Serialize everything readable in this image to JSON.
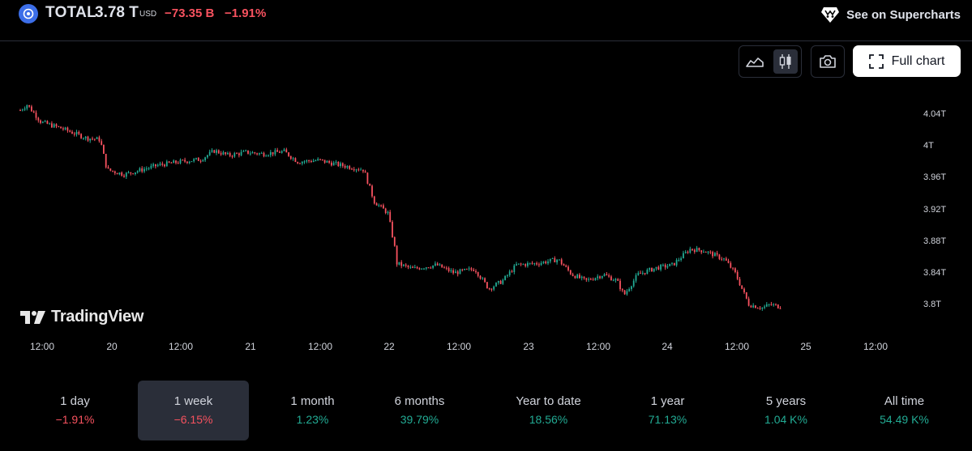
{
  "header": {
    "symbol": "TOTAL",
    "price": "3.78 T",
    "currency": "USD",
    "change": "−73.35 B",
    "change_percent": "−1.91%",
    "supercharts_label": "See on Supercharts"
  },
  "toolbar": {
    "full_chart_label": "Full chart",
    "active_style": "candles"
  },
  "branding": {
    "logo_text": "TradingView"
  },
  "chart_data": {
    "type": "candlestick",
    "title": "",
    "y_ticks": [
      "4.04T",
      "4T",
      "3.96T",
      "3.92T",
      "3.88T",
      "3.84T",
      "3.8T"
    ],
    "x_ticks": [
      "12:00",
      "20",
      "12:00",
      "21",
      "12:00",
      "22",
      "12:00",
      "23",
      "12:00",
      "24",
      "12:00",
      "25",
      "12:00"
    ],
    "ylim": [
      3.78,
      4.06
    ],
    "close_path": [
      {
        "t": 0.0,
        "v": 4.045
      },
      {
        "t": 0.2,
        "v": 4.052
      },
      {
        "t": 0.6,
        "v": 4.03
      },
      {
        "t": 1.2,
        "v": 4.022
      },
      {
        "t": 1.9,
        "v": 4.01
      },
      {
        "t": 2.3,
        "v": 4.008
      },
      {
        "t": 2.5,
        "v": 3.97
      },
      {
        "t": 3.0,
        "v": 3.964
      },
      {
        "t": 3.5,
        "v": 3.97
      },
      {
        "t": 4.0,
        "v": 3.976
      },
      {
        "t": 4.6,
        "v": 3.98
      },
      {
        "t": 5.2,
        "v": 3.983
      },
      {
        "t": 5.6,
        "v": 3.994
      },
      {
        "t": 6.0,
        "v": 3.988
      },
      {
        "t": 6.5,
        "v": 3.992
      },
      {
        "t": 7.0,
        "v": 3.99
      },
      {
        "t": 7.6,
        "v": 3.993
      },
      {
        "t": 8.0,
        "v": 3.98
      },
      {
        "t": 8.6,
        "v": 3.982
      },
      {
        "t": 9.2,
        "v": 3.976
      },
      {
        "t": 9.9,
        "v": 3.97
      },
      {
        "t": 10.2,
        "v": 3.93
      },
      {
        "t": 10.6,
        "v": 3.915
      },
      {
        "t": 10.8,
        "v": 3.87
      },
      {
        "t": 10.85,
        "v": 3.852
      },
      {
        "t": 11.3,
        "v": 3.845
      },
      {
        "t": 12.0,
        "v": 3.85
      },
      {
        "t": 12.5,
        "v": 3.84
      },
      {
        "t": 13.1,
        "v": 3.845
      },
      {
        "t": 13.5,
        "v": 3.82
      },
      {
        "t": 13.9,
        "v": 3.83
      },
      {
        "t": 14.3,
        "v": 3.85
      },
      {
        "t": 14.9,
        "v": 3.852
      },
      {
        "t": 15.5,
        "v": 3.857
      },
      {
        "t": 15.9,
        "v": 3.838
      },
      {
        "t": 16.3,
        "v": 3.83
      },
      {
        "t": 16.8,
        "v": 3.838
      },
      {
        "t": 17.2,
        "v": 3.83
      },
      {
        "t": 17.4,
        "v": 3.812
      },
      {
        "t": 17.8,
        "v": 3.838
      },
      {
        "t": 18.3,
        "v": 3.846
      },
      {
        "t": 18.8,
        "v": 3.85
      },
      {
        "t": 19.3,
        "v": 3.87
      },
      {
        "t": 19.7,
        "v": 3.868
      },
      {
        "t": 20.3,
        "v": 3.857
      },
      {
        "t": 20.6,
        "v": 3.84
      },
      {
        "t": 21.0,
        "v": 3.8
      },
      {
        "t": 21.4,
        "v": 3.796
      },
      {
        "t": 21.6,
        "v": 3.8
      },
      {
        "t": 21.95,
        "v": 3.797
      }
    ]
  },
  "ranges": [
    {
      "label": "1 day",
      "value": "−1.91%",
      "dir": "neg"
    },
    {
      "label": "1 week",
      "value": "−6.15%",
      "dir": "neg",
      "active": true
    },
    {
      "label": "1 month",
      "value": "1.23%",
      "dir": "pos"
    },
    {
      "label": "6 months",
      "value": "39.79%",
      "dir": "pos"
    },
    {
      "label": "Year to date",
      "value": "18.56%",
      "dir": "pos"
    },
    {
      "label": "1 year",
      "value": "71.13%",
      "dir": "pos"
    },
    {
      "label": "5 years",
      "value": "1.04 K%",
      "dir": "pos"
    },
    {
      "label": "All time",
      "value": "54.49 K%",
      "dir": "pos"
    }
  ],
  "colors": {
    "up": "#22ab94",
    "down": "#f7525f",
    "background": "#000000"
  }
}
